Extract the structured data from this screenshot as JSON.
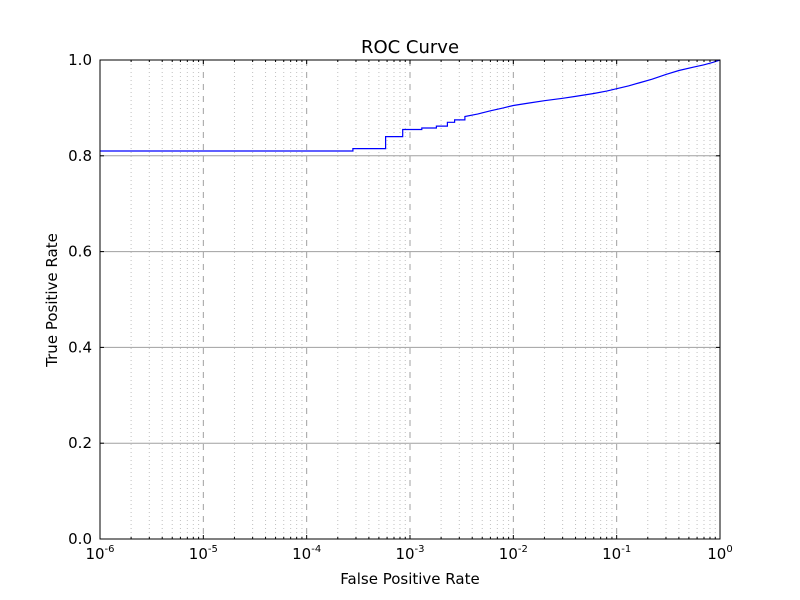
{
  "chart_data": {
    "type": "line",
    "title": "ROC Curve",
    "xlabel": "False Positive Rate",
    "ylabel": "True Positive Rate",
    "xscale": "log",
    "xlim": [
      1e-06,
      1
    ],
    "ylim": [
      0.0,
      1.0
    ],
    "grid": "on",
    "line_color": "#0000ff",
    "x_ticks": [
      {
        "base": "10",
        "exp": "-6",
        "value": 1e-06
      },
      {
        "base": "10",
        "exp": "-5",
        "value": 1e-05
      },
      {
        "base": "10",
        "exp": "-4",
        "value": 0.0001
      },
      {
        "base": "10",
        "exp": "-3",
        "value": 0.001
      },
      {
        "base": "10",
        "exp": "-2",
        "value": 0.01
      },
      {
        "base": "10",
        "exp": "-1",
        "value": 0.1
      },
      {
        "base": "10",
        "exp": "0",
        "value": 1
      }
    ],
    "y_ticks": [
      {
        "label": "0.0",
        "value": 0.0
      },
      {
        "label": "0.2",
        "value": 0.2
      },
      {
        "label": "0.4",
        "value": 0.4
      },
      {
        "label": "0.6",
        "value": 0.6
      },
      {
        "label": "0.8",
        "value": 0.8
      },
      {
        "label": "1.0",
        "value": 1.0
      }
    ],
    "x": [
      1e-06,
      0.00028,
      0.00028,
      0.00058,
      0.00058,
      0.00085,
      0.00085,
      0.0013,
      0.0013,
      0.0018,
      0.0018,
      0.0023,
      0.0023,
      0.0027,
      0.0027,
      0.0034,
      0.0034,
      0.0045,
      0.006,
      0.008,
      0.01,
      0.014,
      0.02,
      0.03,
      0.04,
      0.06,
      0.08,
      0.1,
      0.13,
      0.17,
      0.22,
      0.3,
      0.4,
      0.55,
      0.7,
      0.85,
      1.0
    ],
    "y": [
      0.81,
      0.81,
      0.815,
      0.815,
      0.84,
      0.84,
      0.855,
      0.855,
      0.858,
      0.858,
      0.862,
      0.862,
      0.87,
      0.87,
      0.875,
      0.875,
      0.882,
      0.887,
      0.894,
      0.9,
      0.905,
      0.91,
      0.915,
      0.92,
      0.924,
      0.93,
      0.935,
      0.94,
      0.946,
      0.953,
      0.96,
      0.97,
      0.978,
      0.985,
      0.99,
      0.995,
      1.0
    ]
  }
}
